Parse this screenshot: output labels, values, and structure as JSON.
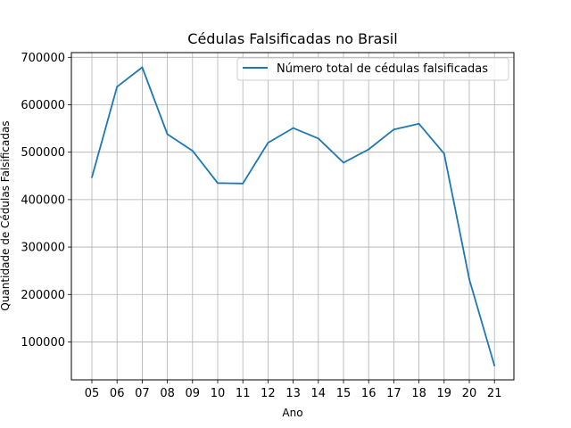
{
  "chart_data": {
    "type": "line",
    "title": "Cédulas Falsificadas no Brasil",
    "xlabel": "Ano",
    "ylabel": "Quantidade de Cédulas Falsificadas",
    "categories": [
      "05",
      "06",
      "07",
      "08",
      "09",
      "10",
      "11",
      "12",
      "13",
      "14",
      "15",
      "16",
      "17",
      "18",
      "19",
      "20",
      "21"
    ],
    "series": [
      {
        "name": "Número total de cédulas falsificadas",
        "values": [
          447000,
          638000,
          679000,
          538000,
          503000,
          435000,
          434000,
          520000,
          551000,
          529000,
          478000,
          506000,
          548000,
          560000,
          497000,
          232000,
          50000
        ],
        "color": "#1f77b4"
      }
    ],
    "yticks": [
      100000,
      200000,
      300000,
      400000,
      500000,
      600000,
      700000
    ],
    "ylim": [
      20000,
      710000
    ],
    "grid": true,
    "legend_position": "top-right"
  }
}
